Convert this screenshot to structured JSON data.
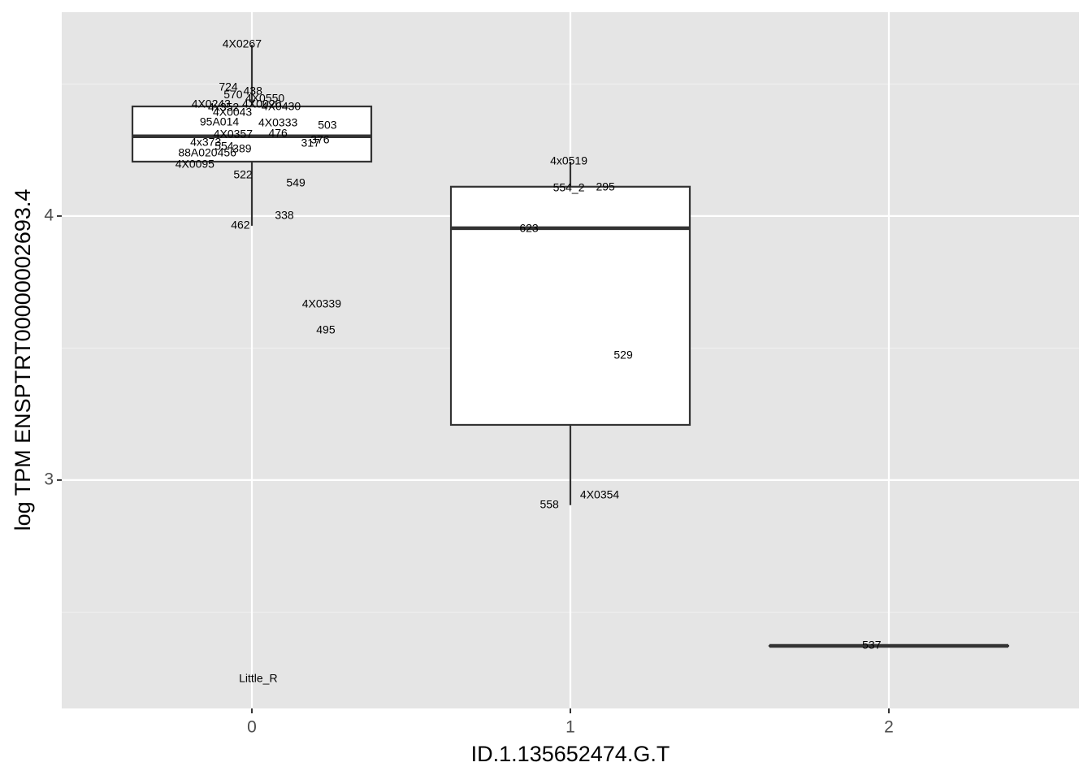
{
  "chart_data": {
    "type": "boxplot",
    "xlabel": "ID.1.135652474.G.T",
    "ylabel": "log TPM ENSPTRT00000002693.4",
    "xlim": [
      -0.597,
      2.597
    ],
    "xticks": [
      0,
      1,
      2
    ],
    "ylim": [
      2.135,
      4.772
    ],
    "yticks": [
      3,
      4
    ],
    "minor_yticks": [
      2.5,
      3.5,
      4.5
    ],
    "grid": true,
    "boxes": {
      "x": [
        0,
        1,
        2
      ],
      "whisker_low": [
        3.963,
        2.905,
        2.372
      ],
      "q1": [
        4.206,
        3.209,
        2.372
      ],
      "median": [
        4.302,
        3.954,
        2.372
      ],
      "q3": [
        4.415,
        4.111,
        2.372
      ],
      "whisker_high": [
        4.649,
        4.206,
        2.372
      ]
    },
    "labels": {
      "text": [
        "4X0267",
        "724",
        "570",
        "438",
        "4X0550",
        "4X0243",
        "4X0430",
        "4x352",
        "4X0020",
        "4X0043",
        "95A014",
        "4X0333",
        "503",
        "4X0357",
        "476",
        "4x373",
        "554",
        "389",
        "317",
        "376",
        "88A020456",
        "4X0095",
        "522",
        "549",
        "338",
        "462",
        "4X0339",
        "495",
        "Little_R",
        "4x0519",
        "554_2",
        "295",
        "623",
        "529",
        "4X0354",
        "558",
        "537"
      ],
      "x": [
        -0.031,
        -0.074,
        -0.059,
        0.003,
        0.041,
        -0.128,
        0.092,
        -0.089,
        0.031,
        -0.061,
        -0.102,
        0.082,
        0.237,
        -0.059,
        0.082,
        -0.145,
        -0.087,
        -0.031,
        0.184,
        0.214,
        -0.14,
        -0.179,
        -0.028,
        0.138,
        0.102,
        -0.036,
        0.219,
        0.232,
        0.02,
        0.995,
        0.995,
        1.11,
        0.87,
        1.166,
        1.092,
        0.934,
        1.946
      ],
      "y": [
        4.649,
        4.486,
        4.458,
        4.471,
        4.443,
        4.422,
        4.412,
        4.409,
        4.422,
        4.391,
        4.354,
        4.351,
        4.342,
        4.308,
        4.311,
        4.277,
        4.262,
        4.252,
        4.274,
        4.286,
        4.237,
        4.194,
        4.154,
        4.123,
        4.0,
        3.963,
        3.665,
        3.566,
        2.246,
        4.206,
        4.105,
        4.108,
        3.951,
        3.471,
        2.942,
        2.905,
        2.372
      ]
    }
  }
}
